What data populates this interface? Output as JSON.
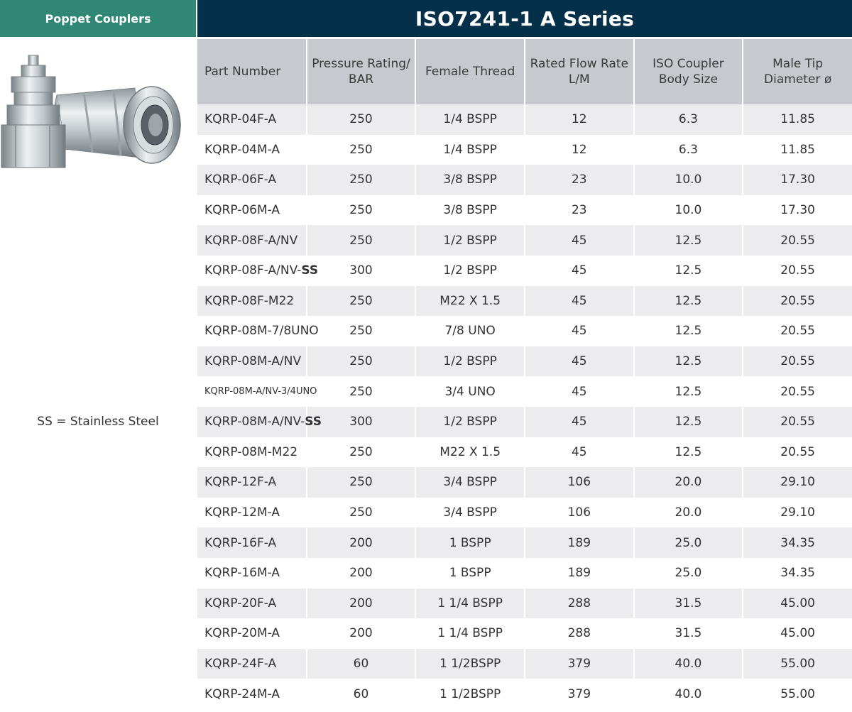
{
  "side_header": {
    "title": "Poppet Couplers"
  },
  "main_header": {
    "title": "ISO7241-1 A Series"
  },
  "note": "SS = Stainless Steel",
  "table": {
    "columns": [
      "Part Number",
      "Pressure Rating/ BAR",
      "Female Thread",
      "Rated Flow Rate L/M",
      "ISO Coupler Body Size",
      "Male Tip Diameter ø"
    ],
    "rows": [
      {
        "part": "KQRP-04F-A",
        "suffix": "",
        "pressure": "250",
        "thread": "1/4 BSPP",
        "flow": "12",
        "size": "6.3",
        "diameter": "11.85"
      },
      {
        "part": "KQRP-04M-A",
        "suffix": "",
        "pressure": "250",
        "thread": "1/4 BSPP",
        "flow": "12",
        "size": "6.3",
        "diameter": "11.85"
      },
      {
        "part": "KQRP-06F-A",
        "suffix": "",
        "pressure": "250",
        "thread": "3/8 BSPP",
        "flow": "23",
        "size": "10.0",
        "diameter": "17.30"
      },
      {
        "part": "KQRP-06M-A",
        "suffix": "",
        "pressure": "250",
        "thread": "3/8 BSPP",
        "flow": "23",
        "size": "10.0",
        "diameter": "17.30"
      },
      {
        "part": "KQRP-08F-A/NV",
        "suffix": "",
        "pressure": "250",
        "thread": "1/2 BSPP",
        "flow": "45",
        "size": "12.5",
        "diameter": "20.55"
      },
      {
        "part": "KQRP-08F-A/NV-",
        "suffix": "SS",
        "pressure": "300",
        "thread": "1/2 BSPP",
        "flow": "45",
        "size": "12.5",
        "diameter": "20.55"
      },
      {
        "part": "KQRP-08F-M22",
        "suffix": "",
        "pressure": "250",
        "thread": "M22 X 1.5",
        "flow": "45",
        "size": "12.5",
        "diameter": "20.55"
      },
      {
        "part": "KQRP-08M-7/8UNO",
        "suffix": "",
        "pressure": "250",
        "thread": "7/8 UNO",
        "flow": "45",
        "size": "12.5",
        "diameter": "20.55"
      },
      {
        "part": "KQRP-08M-A/NV",
        "suffix": "",
        "pressure": "250",
        "thread": "1/2 BSPP",
        "flow": "45",
        "size": "12.5",
        "diameter": "20.55"
      },
      {
        "part": "KQRP-08M-A/NV-3/4UNO",
        "suffix": "",
        "pressure": "250",
        "thread": "3/4 UNO",
        "flow": "45",
        "size": "12.5",
        "diameter": "20.55",
        "small": true
      },
      {
        "part": "KQRP-08M-A/NV-",
        "suffix": "SS",
        "pressure": "300",
        "thread": "1/2 BSPP",
        "flow": "45",
        "size": "12.5",
        "diameter": "20.55"
      },
      {
        "part": "KQRP-08M-M22",
        "suffix": "",
        "pressure": "250",
        "thread": "M22 X 1.5",
        "flow": "45",
        "size": "12.5",
        "diameter": "20.55"
      },
      {
        "part": "KQRP-12F-A",
        "suffix": "",
        "pressure": "250",
        "thread": "3/4 BSPP",
        "flow": "106",
        "size": "20.0",
        "diameter": "29.10"
      },
      {
        "part": "KQRP-12M-A",
        "suffix": "",
        "pressure": "250",
        "thread": "3/4 BSPP",
        "flow": "106",
        "size": "20.0",
        "diameter": "29.10"
      },
      {
        "part": "KQRP-16F-A",
        "suffix": "",
        "pressure": "200",
        "thread": "1 BSPP",
        "flow": "189",
        "size": "25.0",
        "diameter": "34.35"
      },
      {
        "part": "KQRP-16M-A",
        "suffix": "",
        "pressure": "200",
        "thread": "1 BSPP",
        "flow": "189",
        "size": "25.0",
        "diameter": "34.35"
      },
      {
        "part": "KQRP-20F-A",
        "suffix": "",
        "pressure": "200",
        "thread": "1 1/4 BSPP",
        "flow": "288",
        "size": "31.5",
        "diameter": "45.00"
      },
      {
        "part": "KQRP-20M-A",
        "suffix": "",
        "pressure": "200",
        "thread": "1 1/4 BSPP",
        "flow": "288",
        "size": "31.5",
        "diameter": "45.00"
      },
      {
        "part": "KQRP-24F-A",
        "suffix": "",
        "pressure": "60",
        "thread": "1 1/2BSPP",
        "flow": "379",
        "size": "40.0",
        "diameter": "55.00"
      },
      {
        "part": "KQRP-24M-A",
        "suffix": "",
        "pressure": "60",
        "thread": "1 1/2BSPP",
        "flow": "379",
        "size": "40.0",
        "diameter": "55.00"
      }
    ]
  }
}
